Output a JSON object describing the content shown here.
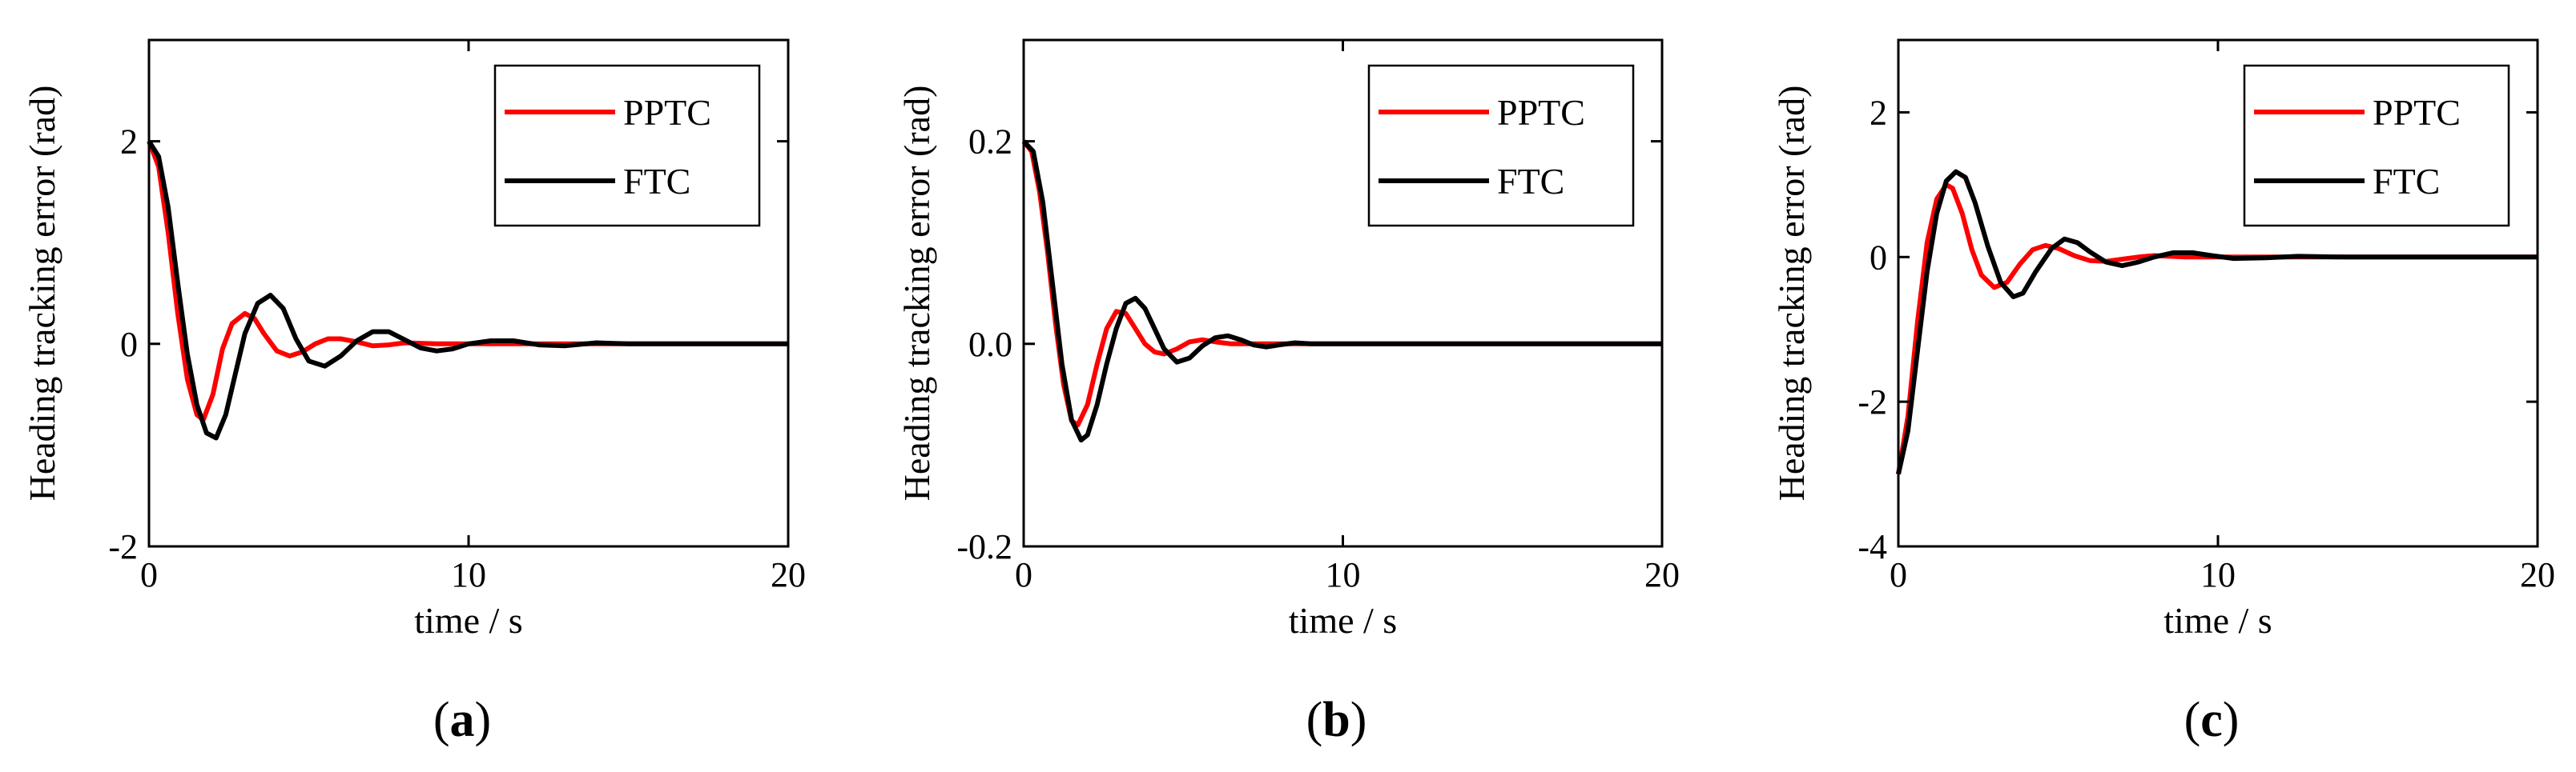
{
  "chart_data": [
    {
      "type": "line",
      "panel_label": "(a)",
      "xlabel": "time / s",
      "ylabel": "Heading tracking error (rad)",
      "xlim": [
        0,
        20
      ],
      "ylim": [
        -2,
        3
      ],
      "xticks": [
        "0",
        "10",
        "20"
      ],
      "yticks": [
        "-2",
        "0",
        "2"
      ],
      "ytick_values": [
        -2,
        0,
        2
      ],
      "legend_position": "top-right",
      "series": [
        {
          "name": "PPTC",
          "color": "#ff0000",
          "x": [
            0,
            0.3,
            0.6,
            0.9,
            1.2,
            1.5,
            1.7,
            2.0,
            2.3,
            2.6,
            3.0,
            3.3,
            3.6,
            4.0,
            4.4,
            4.8,
            5.2,
            5.6,
            6.0,
            6.5,
            7.0,
            7.5,
            8.0,
            9.0,
            10.0,
            12.0,
            14.0,
            16.0,
            18.0,
            20.0
          ],
          "y": [
            2.0,
            1.75,
            1.1,
            0.3,
            -0.35,
            -0.7,
            -0.75,
            -0.5,
            -0.05,
            0.2,
            0.3,
            0.25,
            0.1,
            -0.07,
            -0.12,
            -0.08,
            0.0,
            0.05,
            0.05,
            0.02,
            -0.02,
            -0.01,
            0.01,
            0.0,
            0.0,
            0.0,
            0.0,
            0.0,
            0.0,
            0.0
          ]
        },
        {
          "name": "FTC",
          "color": "#000000",
          "x": [
            0,
            0.3,
            0.6,
            0.9,
            1.2,
            1.5,
            1.8,
            2.1,
            2.4,
            2.7,
            3.0,
            3.4,
            3.8,
            4.2,
            4.6,
            5.0,
            5.5,
            6.0,
            6.5,
            7.0,
            7.5,
            8.0,
            8.5,
            9.0,
            9.5,
            10.0,
            10.7,
            11.4,
            12.2,
            13.0,
            14.0,
            15.0,
            16.5,
            18.0,
            20.0
          ],
          "y": [
            2.0,
            1.85,
            1.35,
            0.6,
            -0.1,
            -0.6,
            -0.88,
            -0.93,
            -0.7,
            -0.3,
            0.1,
            0.4,
            0.48,
            0.35,
            0.05,
            -0.17,
            -0.22,
            -0.12,
            0.03,
            0.12,
            0.12,
            0.04,
            -0.04,
            -0.07,
            -0.05,
            0.0,
            0.03,
            0.03,
            -0.01,
            -0.02,
            0.01,
            0.0,
            0.0,
            0.0,
            0.0
          ]
        }
      ]
    },
    {
      "type": "line",
      "panel_label": "(b)",
      "xlabel": "time / s",
      "ylabel": "Heading tracking error (rad)",
      "xlim": [
        0,
        20
      ],
      "ylim": [
        -0.2,
        0.3
      ],
      "xticks": [
        "0",
        "10",
        "20"
      ],
      "yticks": [
        "-0.2",
        "0.0",
        "0.2"
      ],
      "ytick_values": [
        -0.2,
        0.0,
        0.2
      ],
      "legend_position": "top-right",
      "series": [
        {
          "name": "PPTC",
          "color": "#ff0000",
          "x": [
            0,
            0.25,
            0.5,
            0.75,
            1.0,
            1.25,
            1.5,
            1.7,
            2.0,
            2.3,
            2.6,
            2.9,
            3.2,
            3.5,
            3.8,
            4.1,
            4.4,
            4.8,
            5.2,
            5.6,
            6.0,
            6.5,
            7.0,
            8.0,
            10.0,
            15.0,
            20.0
          ],
          "y": [
            0.2,
            0.19,
            0.15,
            0.09,
            0.02,
            -0.04,
            -0.076,
            -0.08,
            -0.06,
            -0.02,
            0.015,
            0.032,
            0.03,
            0.015,
            0.0,
            -0.008,
            -0.01,
            -0.005,
            0.002,
            0.004,
            0.002,
            0.0,
            0.0,
            0.0,
            0.0,
            0.0,
            0.0
          ]
        },
        {
          "name": "FTC",
          "color": "#000000",
          "x": [
            0,
            0.3,
            0.6,
            0.9,
            1.2,
            1.5,
            1.8,
            2.0,
            2.3,
            2.6,
            2.9,
            3.2,
            3.5,
            3.8,
            4.1,
            4.4,
            4.8,
            5.2,
            5.6,
            6.0,
            6.4,
            6.8,
            7.2,
            7.6,
            8.0,
            8.5,
            9.0,
            10.0,
            15.0,
            20.0
          ],
          "y": [
            0.2,
            0.19,
            0.14,
            0.06,
            -0.02,
            -0.075,
            -0.095,
            -0.09,
            -0.06,
            -0.02,
            0.015,
            0.04,
            0.045,
            0.035,
            0.015,
            -0.005,
            -0.018,
            -0.014,
            -0.002,
            0.006,
            0.008,
            0.004,
            -0.001,
            -0.003,
            -0.001,
            0.001,
            0.0,
            0.0,
            0.0,
            0.0
          ]
        }
      ]
    },
    {
      "type": "line",
      "panel_label": "(c)",
      "xlabel": "time / s",
      "ylabel": "Heading tracking error (rad)",
      "xlim": [
        0,
        20
      ],
      "ylim": [
        -4,
        3
      ],
      "xticks": [
        "0",
        "10",
        "20"
      ],
      "yticks": [
        "-4",
        "-2",
        "0",
        "2"
      ],
      "ytick_values": [
        -4,
        -2,
        0,
        2
      ],
      "legend_position": "top-right",
      "series": [
        {
          "name": "PPTC",
          "color": "#ff0000",
          "x": [
            0,
            0.3,
            0.6,
            0.9,
            1.2,
            1.5,
            1.7,
            2.0,
            2.3,
            2.6,
            3.0,
            3.4,
            3.8,
            4.2,
            4.6,
            5.0,
            5.5,
            6.0,
            6.5,
            7.0,
            7.5,
            8.0,
            9.0,
            10.0,
            12.0,
            15.0,
            20.0
          ],
          "y": [
            -3.0,
            -2.2,
            -0.9,
            0.2,
            0.8,
            1.0,
            0.95,
            0.6,
            0.1,
            -0.25,
            -0.42,
            -0.35,
            -0.1,
            0.1,
            0.16,
            0.12,
            0.02,
            -0.05,
            -0.06,
            -0.03,
            0.0,
            0.02,
            0.0,
            0.0,
            0.0,
            0.0,
            0.0
          ]
        },
        {
          "name": "FTC",
          "color": "#000000",
          "x": [
            0,
            0.3,
            0.6,
            0.9,
            1.2,
            1.5,
            1.8,
            2.1,
            2.4,
            2.8,
            3.2,
            3.6,
            3.9,
            4.3,
            4.8,
            5.2,
            5.6,
            6.0,
            6.5,
            7.0,
            7.5,
            8.0,
            8.6,
            9.2,
            9.8,
            10.5,
            11.5,
            12.5,
            14.0,
            16.0,
            20.0
          ],
          "y": [
            -3.0,
            -2.4,
            -1.3,
            -0.2,
            0.6,
            1.05,
            1.18,
            1.1,
            0.75,
            0.15,
            -0.35,
            -0.55,
            -0.5,
            -0.2,
            0.12,
            0.25,
            0.2,
            0.07,
            -0.07,
            -0.12,
            -0.07,
            0.0,
            0.06,
            0.06,
            0.02,
            -0.02,
            -0.01,
            0.01,
            0.0,
            0.0,
            0.0
          ]
        }
      ]
    }
  ]
}
